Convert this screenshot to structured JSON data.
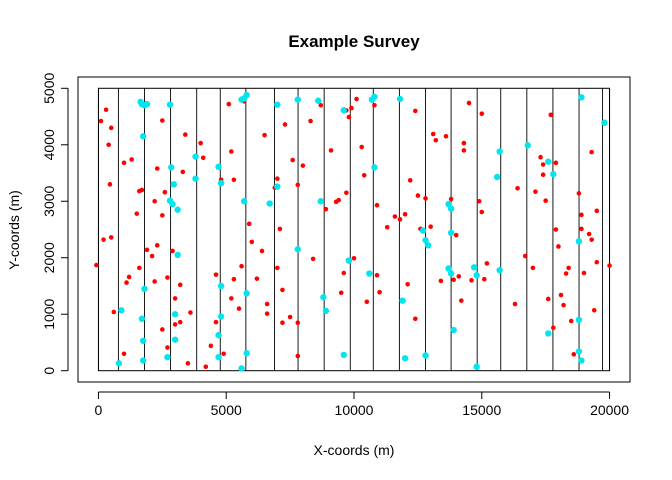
{
  "chart_data": {
    "type": "scatter",
    "title": "Example Survey",
    "xlabel": "X-coords (m)",
    "ylabel": "Y-coords (m)",
    "xlim": [
      -800,
      20800
    ],
    "ylim": [
      -200,
      5200
    ],
    "x_ticks": [
      0,
      5000,
      10000,
      15000,
      20000
    ],
    "y_ticks": [
      0,
      1000,
      2000,
      3000,
      4000,
      5000
    ],
    "region": {
      "x": [
        0,
        20000
      ],
      "y": [
        0,
        5000
      ]
    },
    "transects_x": [
      0,
      781,
      1802,
      2823,
      3845,
      4766,
      5768,
      6890,
      7811,
      8832,
      9854,
      10755,
      11776,
      12798,
      13799,
      14820,
      15742,
      16763,
      17784,
      18806,
      19727,
      20000
    ],
    "colors": {
      "detection": "#ff0000",
      "observed": "#00e5ee",
      "line": "#000000"
    },
    "series": [
      {
        "marker": "small-dot",
        "color": "#ff0000",
        "points": [
          [
            -80,
            1870
          ],
          [
            100,
            4420
          ],
          [
            300,
            4620
          ],
          [
            500,
            4300
          ],
          [
            400,
            4000
          ],
          [
            450,
            3300
          ],
          [
            200,
            2320
          ],
          [
            500,
            2360
          ],
          [
            600,
            1040
          ],
          [
            1000,
            300
          ],
          [
            1000,
            3680
          ],
          [
            1300,
            3740
          ],
          [
            1200,
            1660
          ],
          [
            1100,
            1560
          ],
          [
            1600,
            1820
          ],
          [
            1500,
            2780
          ],
          [
            1600,
            3180
          ],
          [
            1700,
            3200
          ],
          [
            1900,
            2140
          ],
          [
            2200,
            3000
          ],
          [
            2300,
            3580
          ],
          [
            2300,
            2220
          ],
          [
            2100,
            2030
          ],
          [
            2200,
            1580
          ],
          [
            2500,
            4430
          ],
          [
            2600,
            3160
          ],
          [
            2500,
            2750
          ],
          [
            2700,
            1650
          ],
          [
            2500,
            730
          ],
          [
            2700,
            410
          ],
          [
            2900,
            2120
          ],
          [
            3000,
            1280
          ],
          [
            3200,
            1520
          ],
          [
            3200,
            860
          ],
          [
            3000,
            820
          ],
          [
            3400,
            4180
          ],
          [
            3300,
            3520
          ],
          [
            3600,
            1030
          ],
          [
            3500,
            130
          ],
          [
            4000,
            4030
          ],
          [
            4100,
            3770
          ],
          [
            4200,
            70
          ],
          [
            4400,
            440
          ],
          [
            4600,
            1700
          ],
          [
            4600,
            860
          ],
          [
            4800,
            3380
          ],
          [
            4900,
            300
          ],
          [
            5100,
            4720
          ],
          [
            5200,
            3880
          ],
          [
            5300,
            3380
          ],
          [
            5200,
            1280
          ],
          [
            5300,
            1620
          ],
          [
            5500,
            1100
          ],
          [
            5600,
            1850
          ],
          [
            5700,
            4770
          ],
          [
            5900,
            2600
          ],
          [
            6000,
            2280
          ],
          [
            6200,
            1630
          ],
          [
            6500,
            4170
          ],
          [
            6400,
            2120
          ],
          [
            6600,
            1180
          ],
          [
            6600,
            1010
          ],
          [
            6900,
            3240
          ],
          [
            7000,
            3400
          ],
          [
            7100,
            2510
          ],
          [
            7000,
            1820
          ],
          [
            7200,
            1430
          ],
          [
            7200,
            850
          ],
          [
            7300,
            4360
          ],
          [
            7600,
            3730
          ],
          [
            7800,
            3290
          ],
          [
            7500,
            950
          ],
          [
            7800,
            850
          ],
          [
            7800,
            260
          ],
          [
            8000,
            3630
          ],
          [
            8300,
            4420
          ],
          [
            8400,
            1980
          ],
          [
            8700,
            4700
          ],
          [
            8900,
            2860
          ],
          [
            9100,
            3900
          ],
          [
            9300,
            2990
          ],
          [
            9400,
            3020
          ],
          [
            9500,
            1380
          ],
          [
            9700,
            3150
          ],
          [
            9700,
            4610
          ],
          [
            9600,
            1730
          ],
          [
            9800,
            4490
          ],
          [
            9900,
            4650
          ],
          [
            10000,
            1990
          ],
          [
            10100,
            4810
          ],
          [
            10300,
            3960
          ],
          [
            10400,
            3460
          ],
          [
            10500,
            1220
          ],
          [
            10800,
            4700
          ],
          [
            10900,
            2930
          ],
          [
            10900,
            1690
          ],
          [
            11000,
            1390
          ],
          [
            11300,
            2540
          ],
          [
            11600,
            2730
          ],
          [
            11800,
            2680
          ],
          [
            12000,
            2770
          ],
          [
            12100,
            1530
          ],
          [
            12200,
            3370
          ],
          [
            12400,
            4600
          ],
          [
            12400,
            920
          ],
          [
            12500,
            3100
          ],
          [
            12600,
            2510
          ],
          [
            12800,
            3050
          ],
          [
            13000,
            2550
          ],
          [
            13100,
            4190
          ],
          [
            13200,
            4080
          ],
          [
            13400,
            1590
          ],
          [
            13600,
            4150
          ],
          [
            13800,
            3040
          ],
          [
            13900,
            1610
          ],
          [
            14000,
            2400
          ],
          [
            14100,
            1670
          ],
          [
            14200,
            1240
          ],
          [
            14300,
            3900
          ],
          [
            14300,
            4030
          ],
          [
            14500,
            4740
          ],
          [
            14600,
            1600
          ],
          [
            14900,
            3000
          ],
          [
            15000,
            4550
          ],
          [
            15000,
            2810
          ],
          [
            15100,
            1620
          ],
          [
            15200,
            1900
          ],
          [
            16300,
            1180
          ],
          [
            16400,
            3230
          ],
          [
            16700,
            2030
          ],
          [
            17000,
            1820
          ],
          [
            17100,
            3170
          ],
          [
            17300,
            3780
          ],
          [
            17400,
            3650
          ],
          [
            17400,
            3470
          ],
          [
            17500,
            3010
          ],
          [
            17600,
            1270
          ],
          [
            17700,
            4530
          ],
          [
            17800,
            760
          ],
          [
            17900,
            3680
          ],
          [
            17900,
            2500
          ],
          [
            18000,
            2200
          ],
          [
            18100,
            1340
          ],
          [
            18200,
            1160
          ],
          [
            18300,
            1720
          ],
          [
            18400,
            1820
          ],
          [
            18500,
            880
          ],
          [
            18600,
            290
          ],
          [
            18800,
            3140
          ],
          [
            18900,
            2510
          ],
          [
            18900,
            2760
          ],
          [
            19000,
            1730
          ],
          [
            19200,
            2420
          ],
          [
            19300,
            3870
          ],
          [
            19300,
            2320
          ],
          [
            19500,
            1920
          ],
          [
            19400,
            1070
          ],
          [
            19500,
            2830
          ],
          [
            20000,
            1860
          ]
        ]
      },
      {
        "marker": "large-dot",
        "color": "#00e5ee",
        "points": [
          [
            900,
            1070
          ],
          [
            800,
            130
          ],
          [
            1650,
            4760
          ],
          [
            1700,
            4720
          ],
          [
            1800,
            4700
          ],
          [
            1900,
            4720
          ],
          [
            1750,
            4150
          ],
          [
            1800,
            1450
          ],
          [
            1700,
            920
          ],
          [
            1750,
            530
          ],
          [
            1750,
            180
          ],
          [
            2800,
            4710
          ],
          [
            2850,
            3600
          ],
          [
            2800,
            3010
          ],
          [
            2900,
            2950
          ],
          [
            2950,
            3300
          ],
          [
            3100,
            2850
          ],
          [
            3100,
            2050
          ],
          [
            3000,
            1000
          ],
          [
            3000,
            550
          ],
          [
            2700,
            240
          ],
          [
            3800,
            3400
          ],
          [
            3800,
            3790
          ],
          [
            4700,
            3610
          ],
          [
            4800,
            3320
          ],
          [
            4800,
            1500
          ],
          [
            4800,
            960
          ],
          [
            4700,
            630
          ],
          [
            4700,
            240
          ],
          [
            5600,
            4800
          ],
          [
            5700,
            4820
          ],
          [
            5800,
            4880
          ],
          [
            5700,
            3000
          ],
          [
            5800,
            1370
          ],
          [
            5600,
            40
          ],
          [
            5800,
            310
          ],
          [
            6700,
            2960
          ],
          [
            7000,
            4710
          ],
          [
            7000,
            3260
          ],
          [
            7800,
            4800
          ],
          [
            7800,
            2150
          ],
          [
            8800,
            1300
          ],
          [
            8900,
            1060
          ],
          [
            8700,
            3000
          ],
          [
            8600,
            4780
          ],
          [
            9600,
            280
          ],
          [
            9800,
            1950
          ],
          [
            9600,
            4610
          ],
          [
            10600,
            1720
          ],
          [
            10700,
            4800
          ],
          [
            10800,
            4850
          ],
          [
            10800,
            3600
          ],
          [
            11800,
            4810
          ],
          [
            11900,
            1240
          ],
          [
            12000,
            220
          ],
          [
            12700,
            2480
          ],
          [
            12800,
            2310
          ],
          [
            12900,
            2220
          ],
          [
            12800,
            270
          ],
          [
            13800,
            2870
          ],
          [
            13700,
            2950
          ],
          [
            13700,
            1810
          ],
          [
            13800,
            1720
          ],
          [
            13900,
            720
          ],
          [
            13800,
            2440
          ],
          [
            14700,
            1830
          ],
          [
            14800,
            1690
          ],
          [
            14800,
            70
          ],
          [
            15600,
            3430
          ],
          [
            15700,
            3880
          ],
          [
            15700,
            1780
          ],
          [
            16800,
            3990
          ],
          [
            17600,
            660
          ],
          [
            17800,
            3480
          ],
          [
            17600,
            3700
          ],
          [
            18800,
            2290
          ],
          [
            18800,
            900
          ],
          [
            18800,
            340
          ],
          [
            18900,
            180
          ],
          [
            18900,
            4840
          ],
          [
            19800,
            4390
          ]
        ]
      }
    ]
  }
}
